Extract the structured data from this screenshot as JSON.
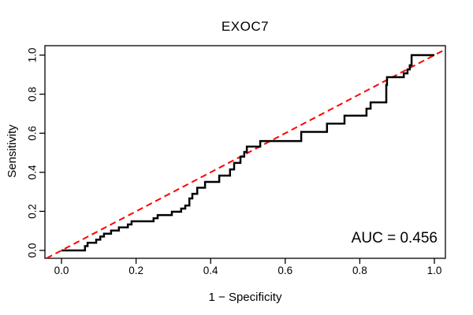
{
  "chart": {
    "title": "EXOC7",
    "xlabel": "1 − Specificity",
    "ylabel": "Sensitivity",
    "auc_label": "AUC = 0.456"
  },
  "chart_data": {
    "type": "line",
    "subtype": "roc-step-curve",
    "title": "EXOC7",
    "xlabel": "1 − Specificity",
    "ylabel": "Sensitivity",
    "xlim": [
      0,
      1
    ],
    "ylim": [
      0,
      1
    ],
    "grid": false,
    "legend": "none",
    "auc": 0.456,
    "annotations": [
      {
        "text": "AUC = 0.456",
        "position": "bottom-right"
      }
    ],
    "x_ticks": [
      {
        "pos": 0.0,
        "label": "0.0"
      },
      {
        "pos": 0.2,
        "label": "0.2"
      },
      {
        "pos": 0.4,
        "label": "0.4"
      },
      {
        "pos": 0.6,
        "label": "0.6"
      },
      {
        "pos": 0.8,
        "label": "0.8"
      },
      {
        "pos": 1.0,
        "label": "1.0"
      }
    ],
    "y_ticks": [
      {
        "pos": 0.0,
        "label": "0.0"
      },
      {
        "pos": 0.2,
        "label": "0.2"
      },
      {
        "pos": 0.4,
        "label": "0.4"
      },
      {
        "pos": 0.6,
        "label": "0.6"
      },
      {
        "pos": 0.8,
        "label": "0.8"
      },
      {
        "pos": 1.0,
        "label": "1.0"
      }
    ],
    "series": [
      {
        "name": "ROC curve (EXOC7)",
        "style": "step",
        "color": "#000000",
        "line_width": 2.5,
        "flats": [
          [
            0.0,
            0.063,
            0.0
          ],
          [
            0.063,
            0.07,
            0.022
          ],
          [
            0.07,
            0.093,
            0.039
          ],
          [
            0.093,
            0.104,
            0.055
          ],
          [
            0.104,
            0.114,
            0.071
          ],
          [
            0.114,
            0.133,
            0.086
          ],
          [
            0.133,
            0.154,
            0.102
          ],
          [
            0.154,
            0.178,
            0.118
          ],
          [
            0.178,
            0.188,
            0.133
          ],
          [
            0.188,
            0.247,
            0.149
          ],
          [
            0.247,
            0.258,
            0.165
          ],
          [
            0.258,
            0.296,
            0.181
          ],
          [
            0.296,
            0.321,
            0.198
          ],
          [
            0.321,
            0.332,
            0.214
          ],
          [
            0.332,
            0.343,
            0.23
          ],
          [
            0.343,
            0.351,
            0.266
          ],
          [
            0.351,
            0.364,
            0.29
          ],
          [
            0.364,
            0.385,
            0.321
          ],
          [
            0.385,
            0.423,
            0.351
          ],
          [
            0.423,
            0.452,
            0.383
          ],
          [
            0.452,
            0.463,
            0.415
          ],
          [
            0.463,
            0.48,
            0.448
          ],
          [
            0.48,
            0.49,
            0.48
          ],
          [
            0.49,
            0.497,
            0.504
          ],
          [
            0.497,
            0.533,
            0.532
          ],
          [
            0.533,
            0.643,
            0.56
          ],
          [
            0.643,
            0.712,
            0.607
          ],
          [
            0.712,
            0.759,
            0.649
          ],
          [
            0.759,
            0.818,
            0.69
          ],
          [
            0.818,
            0.829,
            0.726
          ],
          [
            0.829,
            0.871,
            0.758
          ],
          [
            0.871,
            0.873,
            0.847
          ],
          [
            0.873,
            0.918,
            0.887
          ],
          [
            0.918,
            0.928,
            0.907
          ],
          [
            0.928,
            0.934,
            0.927
          ],
          [
            0.934,
            0.939,
            0.948
          ],
          [
            0.939,
            1.0,
            1.0
          ]
        ]
      },
      {
        "name": "Chance diagonal",
        "style": "dashed",
        "color": "#ff0000",
        "line_width": 2,
        "points": [
          [
            0,
            0
          ],
          [
            1,
            1
          ]
        ]
      }
    ],
    "colors": {
      "background": "#ffffff",
      "axis": "#000000",
      "curve": "#000000",
      "diagonal": "#ff0000"
    }
  }
}
